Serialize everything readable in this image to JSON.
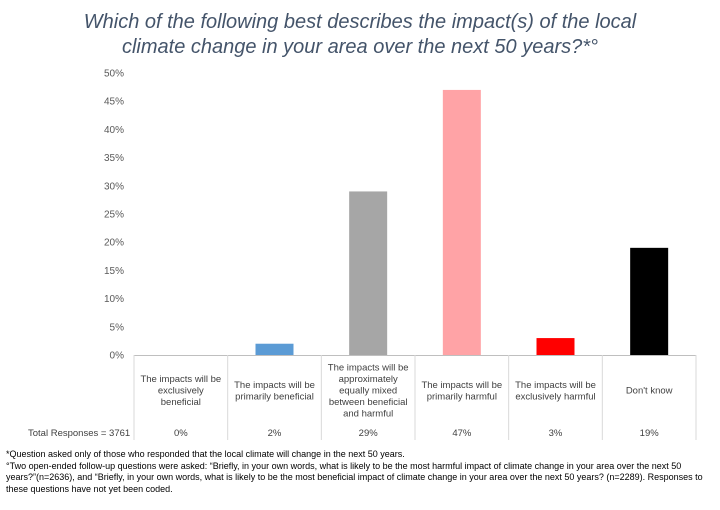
{
  "chart_data": {
    "type": "bar",
    "title": [
      "Which of the following best describes the impact(s) of the local",
      "climate change in your area over the next 50 years?*°"
    ],
    "categories": [
      [
        "The impacts will be",
        "exclusively",
        "beneficial"
      ],
      [
        "The impacts will be",
        "primarily beneficial"
      ],
      [
        "The impacts will be",
        "approximately",
        "equally mixed",
        "between beneficial",
        "and harmful"
      ],
      [
        "The impacts will be",
        "primarily harmful"
      ],
      [
        "The impacts will be",
        "exclusively harmful"
      ],
      [
        "Don't know"
      ]
    ],
    "values": [
      0,
      2,
      29,
      47,
      3,
      19
    ],
    "colors": [
      "#5B9BD5",
      "#5B9BD5",
      "#A6A6A6",
      "#FFA3A6",
      "#FF0000",
      "#000000"
    ],
    "ylim": [
      0,
      50
    ],
    "yticks": [
      "0%",
      "5%",
      "10%",
      "15%",
      "20%",
      "25%",
      "30%",
      "35%",
      "40%",
      "45%",
      "50%"
    ],
    "table_label": "Total Responses = 3761",
    "table_values": [
      "0%",
      "2%",
      "29%",
      "47%",
      "3%",
      "19%"
    ],
    "grid": false
  },
  "footnotes": [
    "*Question asked only of those who responded that the local climate will change in the next 50 years.",
    "°Two open-ended follow-up questions were asked: “Briefly, in your own words, what is likely to be the most harmful impact of climate change in your area over the next 50 years?”(n=2636), and “Briefly, in your own words, what is likely to be the most beneficial impact of climate change in your area over the next 50 years? (n=2289). Responses to these questions have not yet been coded."
  ]
}
